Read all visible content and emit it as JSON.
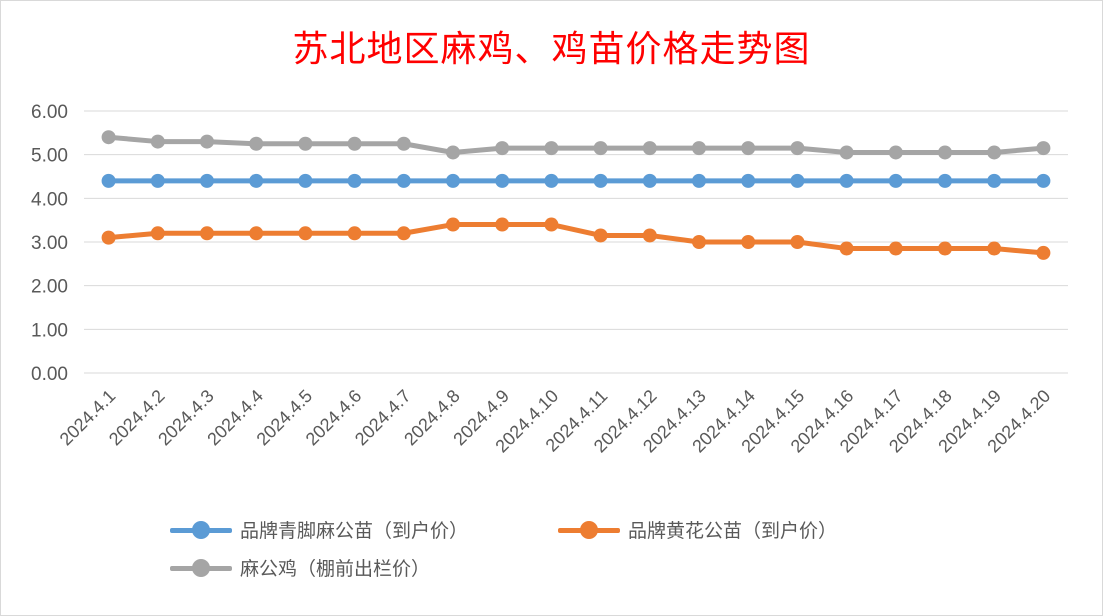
{
  "colors": {
    "title": "#ff0000",
    "grid": "#d9d9d9",
    "axis_text": "#595959"
  },
  "chart_data": {
    "type": "line",
    "title": "苏北地区麻鸡、鸡苗价格走势图",
    "xlabel": "",
    "ylabel": "",
    "ylim": [
      0,
      6
    ],
    "yticks": [
      "0.00",
      "1.00",
      "2.00",
      "3.00",
      "4.00",
      "5.00",
      "6.00"
    ],
    "grid": true,
    "legend": "bottom",
    "categories": [
      "2024.4.1",
      "2024.4.2",
      "2024.4.3",
      "2024.4.4",
      "2024.4.5",
      "2024.4.6",
      "2024.4.7",
      "2024.4.8",
      "2024.4.9",
      "2024.4.10",
      "2024.4.11",
      "2024.4.12",
      "2024.4.13",
      "2024.4.14",
      "2024.4.15",
      "2024.4.16",
      "2024.4.17",
      "2024.4.18",
      "2024.4.19",
      "2024.4.20"
    ],
    "series": [
      {
        "name": "品牌青脚麻公苗（到户价）",
        "color": "#5b9bd5",
        "values": [
          4.4,
          4.4,
          4.4,
          4.4,
          4.4,
          4.4,
          4.4,
          4.4,
          4.4,
          4.4,
          4.4,
          4.4,
          4.4,
          4.4,
          4.4,
          4.4,
          4.4,
          4.4,
          4.4,
          4.4
        ]
      },
      {
        "name": "品牌黄花公苗（到户价）",
        "color": "#ed7d31",
        "values": [
          3.1,
          3.2,
          3.2,
          3.2,
          3.2,
          3.2,
          3.2,
          3.4,
          3.4,
          3.4,
          3.15,
          3.15,
          3.0,
          3.0,
          3.0,
          2.85,
          2.85,
          2.85,
          2.85,
          2.75
        ]
      },
      {
        "name": "麻公鸡（棚前出栏价）",
        "color": "#a5a5a5",
        "values": [
          5.4,
          5.3,
          5.3,
          5.25,
          5.25,
          5.25,
          5.25,
          5.05,
          5.15,
          5.15,
          5.15,
          5.15,
          5.15,
          5.15,
          5.15,
          5.05,
          5.05,
          5.05,
          5.05,
          5.15
        ]
      }
    ]
  }
}
